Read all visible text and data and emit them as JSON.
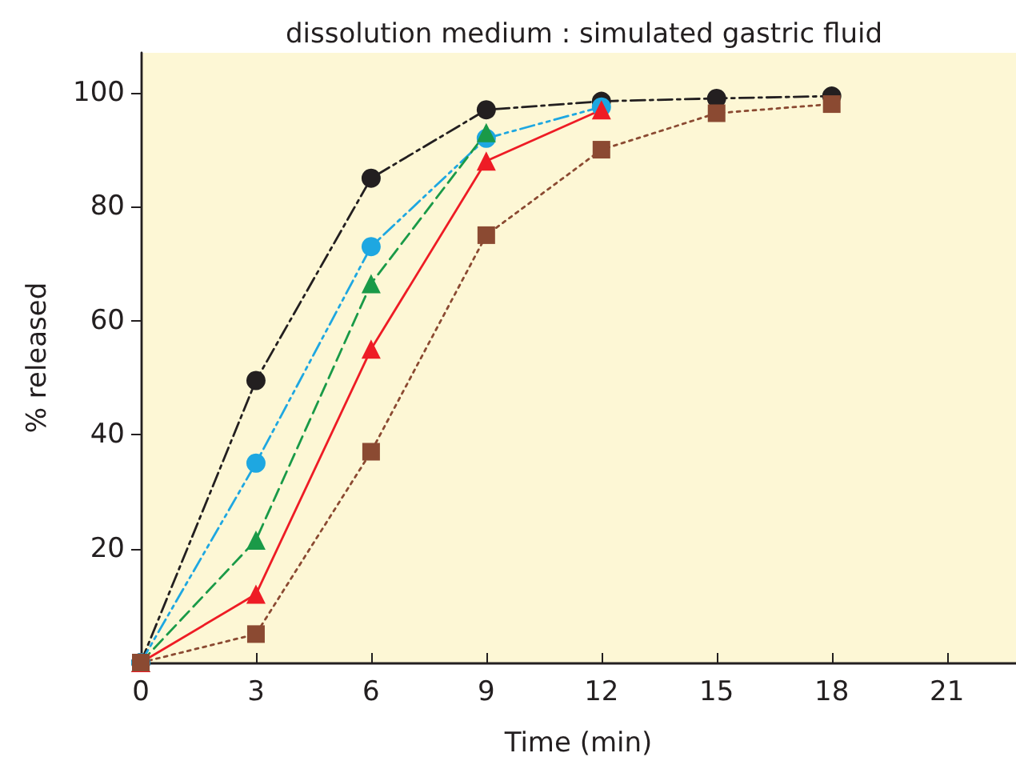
{
  "chart_data": {
    "type": "line",
    "title": "dissolution medium : simulated gastric fluid",
    "xlabel": "Time (min)",
    "ylabel": "% released",
    "xlim": [
      0,
      22.8
    ],
    "xticks": [
      0,
      3,
      6,
      9,
      12,
      15,
      18,
      21
    ],
    "ylim": [
      0,
      107
    ],
    "yticks": [
      20,
      40,
      60,
      80,
      100
    ],
    "grid": false,
    "series": [
      {
        "color": "#231f20",
        "marker": "circle",
        "line_style": "dashdot",
        "x": [
          0,
          3,
          6,
          9,
          12,
          15,
          18
        ],
        "values": [
          0,
          49.5,
          85,
          97,
          98.5,
          99,
          99.4
        ]
      },
      {
        "color": "#1ea7e1",
        "marker": "circle",
        "line_style": "dashdotdot",
        "x": [
          0,
          3,
          6,
          9,
          12
        ],
        "values": [
          0,
          35,
          73,
          92,
          97.5
        ]
      },
      {
        "color": "#1a9a48",
        "marker": "triangle",
        "line_style": "dashed",
        "x": [
          0,
          3,
          6,
          9
        ],
        "values": [
          0,
          21.5,
          66.5,
          93
        ]
      },
      {
        "color": "#ee1c25",
        "marker": "triangle",
        "line_style": "solid",
        "x": [
          0,
          3,
          6,
          9,
          12
        ],
        "values": [
          0,
          12,
          55,
          88,
          97
        ]
      },
      {
        "color": "#8b4a32",
        "marker": "square",
        "line_style": "dotted",
        "x": [
          0,
          3,
          6,
          9,
          12,
          15,
          18
        ],
        "values": [
          0,
          5,
          37,
          75,
          90,
          96.4,
          98
        ]
      }
    ]
  }
}
